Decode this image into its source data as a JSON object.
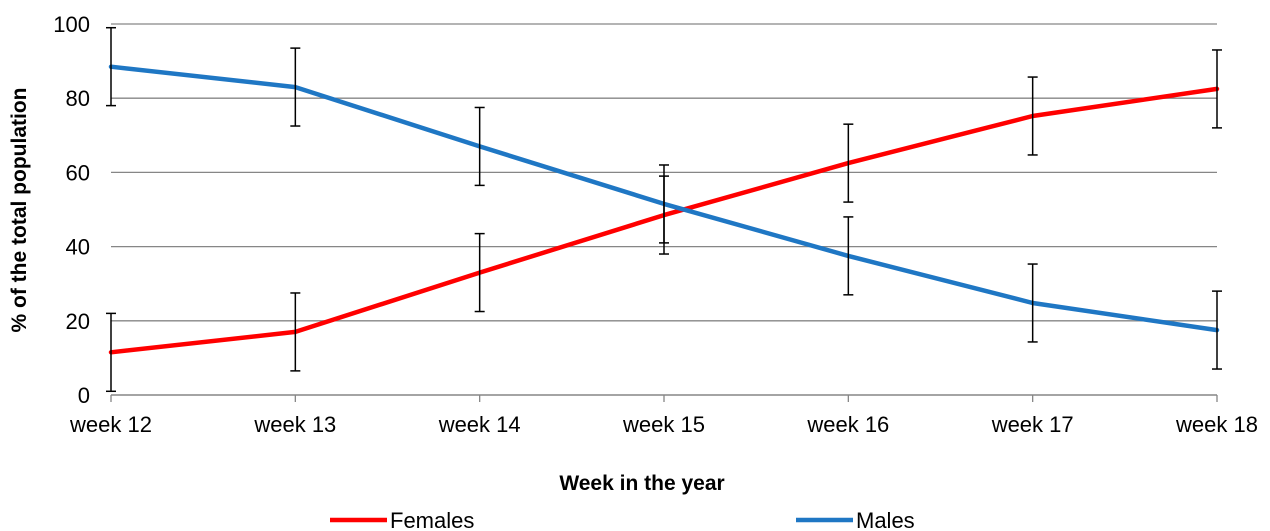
{
  "chart_data": {
    "type": "line",
    "categories": [
      "week 12",
      "week 13",
      "week 14",
      "week 15",
      "week 16",
      "week 17",
      "week 18"
    ],
    "xlabel": "Week in the year",
    "ylabel": "% of the total population",
    "ylim": [
      0,
      100
    ],
    "yticks": [
      0,
      20,
      40,
      60,
      80,
      100
    ],
    "grid": "horizontal",
    "legend_position": "bottom",
    "error_bar_halfwidth": 10.5,
    "series": [
      {
        "name": "Females",
        "color": "#ff0000",
        "values": [
          11.5,
          17,
          33,
          48.5,
          62.5,
          75.2,
          82.5
        ]
      },
      {
        "name": "Males",
        "color": "#1f77c4",
        "values": [
          88.5,
          83,
          67,
          51.5,
          37.5,
          24.8,
          17.5
        ]
      }
    ]
  }
}
